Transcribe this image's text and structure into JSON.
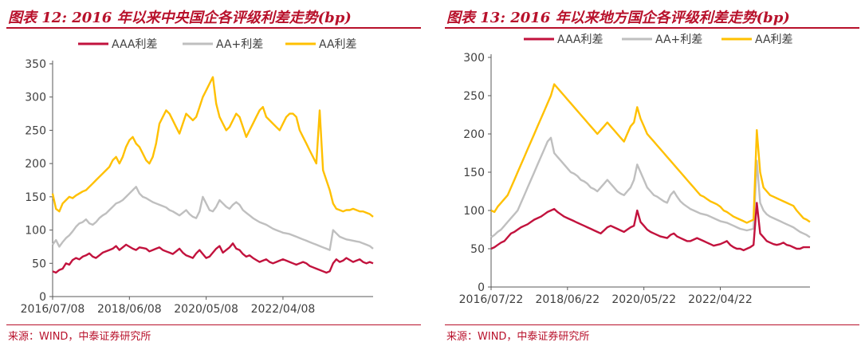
{
  "colors": {
    "title_red": "#b8112b",
    "AAA": "#c2123d",
    "AA+": "#bfbfbf",
    "AA": "#ffc000"
  },
  "charts": [
    {
      "title": "图表 12: 2016 年以来中央国企各评级利差走势(bp)",
      "source": "来源：WIND，中泰证券研究所"
    },
    {
      "title": "图表 13: 2016 年以来地方国企各评级利差走势(bp)",
      "source": "来源：WIND，中泰证券研究所"
    }
  ],
  "chart_data": [
    {
      "type": "line",
      "title": "图表 12: 2016 年以来中央国企各评级利差走势(bp)",
      "xlabel": "",
      "ylabel": "",
      "ylim": [
        0,
        350
      ],
      "yticks": [
        0,
        50,
        100,
        150,
        200,
        250,
        300,
        350
      ],
      "xlim": [
        "2016/07/08",
        "2024/07/05"
      ],
      "xticks": [
        "2016/07/08",
        "2018/06/08",
        "2020/05/08",
        "2022/04/08"
      ],
      "legend": "top-center",
      "grid": false,
      "x": [
        "2016/07/08",
        "2016/08/05",
        "2016/09/02",
        "2016/10/07",
        "2016/11/04",
        "2016/12/02",
        "2017/01/06",
        "2017/02/03",
        "2017/03/03",
        "2017/04/07",
        "2017/05/05",
        "2017/06/02",
        "2017/07/07",
        "2017/08/04",
        "2017/09/01",
        "2017/10/06",
        "2017/11/03",
        "2017/12/01",
        "2018/01/05",
        "2018/02/02",
        "2018/03/02",
        "2018/04/06",
        "2018/05/04",
        "2018/06/08",
        "2018/07/06",
        "2018/08/03",
        "2018/09/07",
        "2018/10/05",
        "2018/11/02",
        "2018/12/07",
        "2019/01/04",
        "2019/02/01",
        "2019/03/08",
        "2019/04/05",
        "2019/05/03",
        "2019/06/07",
        "2019/07/05",
        "2019/08/02",
        "2019/09/06",
        "2019/10/04",
        "2019/11/01",
        "2019/12/06",
        "2020/01/03",
        "2020/02/07",
        "2020/03/06",
        "2020/04/03",
        "2020/05/08",
        "2020/06/05",
        "2020/07/03",
        "2020/08/07",
        "2020/09/04",
        "2020/10/02",
        "2020/11/06",
        "2020/12/04",
        "2021/01/08",
        "2021/02/05",
        "2021/03/05",
        "2021/04/02",
        "2021/05/07",
        "2021/06/04",
        "2021/07/02",
        "2021/08/06",
        "2021/09/03",
        "2021/10/08",
        "2021/11/05",
        "2021/12/03",
        "2022/01/07",
        "2022/02/04",
        "2022/03/04",
        "2022/04/08",
        "2022/05/06",
        "2022/06/03",
        "2022/07/08",
        "2022/08/05",
        "2022/09/02",
        "2022/10/07",
        "2022/11/04",
        "2022/12/02",
        "2023/01/06",
        "2023/02/03",
        "2023/03/03",
        "2023/04/07",
        "2023/05/05",
        "2023/06/02",
        "2023/07/07",
        "2023/08/04",
        "2023/09/01",
        "2023/10/06",
        "2023/11/03",
        "2023/12/01",
        "2024/01/05",
        "2024/02/02",
        "2024/03/01",
        "2024/04/05",
        "2024/05/03",
        "2024/06/07",
        "2024/07/05"
      ],
      "series": [
        {
          "name": "AAA利差",
          "color": "#c2123d",
          "values": [
            38,
            36,
            40,
            42,
            50,
            48,
            55,
            58,
            56,
            60,
            62,
            65,
            60,
            58,
            62,
            66,
            68,
            70,
            72,
            76,
            70,
            74,
            78,
            75,
            72,
            70,
            74,
            73,
            72,
            68,
            70,
            72,
            74,
            70,
            68,
            66,
            64,
            68,
            72,
            66,
            62,
            60,
            58,
            65,
            70,
            64,
            58,
            60,
            66,
            72,
            76,
            66,
            70,
            74,
            80,
            72,
            70,
            64,
            60,
            62,
            58,
            55,
            52,
            54,
            56,
            52,
            50,
            52,
            54,
            56,
            54,
            52,
            50,
            48,
            50,
            52,
            50,
            46,
            44,
            42,
            40,
            38,
            36,
            38,
            50,
            56,
            52,
            54,
            58,
            55,
            52,
            54,
            56,
            52,
            50,
            52,
            50
          ]
        },
        {
          "name": "AA+利差",
          "color": "#bfbfbf",
          "values": [
            78,
            85,
            75,
            82,
            88,
            92,
            98,
            105,
            110,
            112,
            116,
            110,
            108,
            112,
            118,
            122,
            125,
            130,
            135,
            140,
            142,
            145,
            150,
            155,
            160,
            165,
            155,
            150,
            148,
            145,
            142,
            140,
            138,
            136,
            134,
            130,
            128,
            125,
            122,
            126,
            130,
            124,
            120,
            118,
            128,
            150,
            140,
            130,
            128,
            135,
            145,
            140,
            135,
            132,
            138,
            142,
            138,
            130,
            126,
            122,
            118,
            115,
            112,
            110,
            108,
            105,
            102,
            100,
            98,
            96,
            95,
            94,
            92,
            90,
            88,
            86,
            84,
            82,
            80,
            78,
            76,
            74,
            72,
            70,
            100,
            95,
            90,
            88,
            86,
            85,
            84,
            83,
            82,
            80,
            78,
            76,
            72
          ]
        },
        {
          "name": "AA利差",
          "color": "#ffc000",
          "values": [
            155,
            132,
            128,
            140,
            145,
            150,
            148,
            152,
            155,
            158,
            160,
            165,
            170,
            175,
            180,
            185,
            190,
            195,
            205,
            210,
            200,
            210,
            225,
            235,
            240,
            230,
            225,
            215,
            205,
            200,
            210,
            230,
            260,
            270,
            280,
            275,
            265,
            255,
            245,
            260,
            275,
            270,
            265,
            270,
            285,
            300,
            310,
            320,
            330,
            290,
            270,
            260,
            250,
            255,
            265,
            275,
            270,
            255,
            240,
            250,
            260,
            270,
            280,
            285,
            270,
            265,
            260,
            255,
            250,
            260,
            270,
            275,
            275,
            270,
            250,
            240,
            230,
            220,
            210,
            200,
            280,
            190,
            175,
            160,
            140,
            132,
            130,
            128,
            130,
            130,
            132,
            130,
            128,
            128,
            126,
            124,
            120
          ]
        }
      ]
    },
    {
      "type": "line",
      "title": "图表 13: 2016 年以来地方国企各评级利差走势(bp)",
      "xlabel": "",
      "ylabel": "",
      "ylim": [
        0,
        300
      ],
      "yticks": [
        0,
        50,
        100,
        150,
        200,
        250,
        300
      ],
      "xlim": [
        "2016/07/22",
        "2024/07/19"
      ],
      "xticks": [
        "2016/07/22",
        "2018/06/22",
        "2020/05/22",
        "2022/04/22"
      ],
      "legend": "top-center",
      "grid": false,
      "x": [
        "2016/07/22",
        "2016/08/19",
        "2016/09/23",
        "2016/10/21",
        "2016/11/18",
        "2016/12/23",
        "2017/01/20",
        "2017/02/17",
        "2017/03/24",
        "2017/04/21",
        "2017/05/19",
        "2017/06/23",
        "2017/07/21",
        "2017/08/18",
        "2017/09/22",
        "2017/10/20",
        "2017/11/24",
        "2017/12/22",
        "2018/01/19",
        "2018/02/23",
        "2018/03/23",
        "2018/04/20",
        "2018/05/18",
        "2018/06/22",
        "2018/07/20",
        "2018/08/24",
        "2018/09/21",
        "2018/10/19",
        "2018/11/23",
        "2018/12/21",
        "2019/01/18",
        "2019/02/22",
        "2019/03/22",
        "2019/04/19",
        "2019/05/24",
        "2019/06/21",
        "2019/07/19",
        "2019/08/23",
        "2019/09/20",
        "2019/10/18",
        "2019/11/22",
        "2019/12/20",
        "2020/01/17",
        "2020/02/21",
        "2020/03/20",
        "2020/04/24",
        "2020/05/22",
        "2020/06/19",
        "2020/07/24",
        "2020/08/21",
        "2020/09/18",
        "2020/10/23",
        "2020/11/20",
        "2020/12/18",
        "2021/01/22",
        "2021/02/19",
        "2021/03/19",
        "2021/04/23",
        "2021/05/21",
        "2021/06/18",
        "2021/07/23",
        "2021/08/20",
        "2021/09/24",
        "2021/10/22",
        "2021/11/19",
        "2021/12/24",
        "2022/01/21",
        "2022/02/18",
        "2022/03/18",
        "2022/04/22",
        "2022/05/20",
        "2022/06/24",
        "2022/07/22",
        "2022/08/19",
        "2022/09/23",
        "2022/10/21",
        "2022/11/18",
        "2022/12/23",
        "2023/01/20",
        "2023/02/24",
        "2023/03/24",
        "2023/04/21",
        "2023/05/19",
        "2023/06/23",
        "2023/07/21",
        "2023/08/18",
        "2023/09/22",
        "2023/10/20",
        "2023/11/24",
        "2023/12/22",
        "2024/01/19",
        "2024/02/23",
        "2024/03/22",
        "2024/04/19",
        "2024/05/24",
        "2024/06/21",
        "2024/07/19"
      ],
      "series": [
        {
          "name": "AAA利差",
          "color": "#c2123d",
          "values": [
            50,
            52,
            55,
            58,
            60,
            65,
            70,
            72,
            75,
            78,
            80,
            82,
            85,
            88,
            90,
            92,
            95,
            98,
            100,
            102,
            98,
            95,
            92,
            90,
            88,
            86,
            84,
            82,
            80,
            78,
            76,
            74,
            72,
            70,
            74,
            78,
            80,
            78,
            76,
            74,
            72,
            75,
            78,
            80,
            100,
            85,
            80,
            75,
            72,
            70,
            68,
            66,
            65,
            64,
            68,
            70,
            66,
            64,
            62,
            60,
            60,
            62,
            64,
            62,
            60,
            58,
            56,
            54,
            55,
            56,
            58,
            60,
            55,
            52,
            50,
            50,
            48,
            50,
            52,
            55,
            110,
            70,
            65,
            60,
            58,
            56,
            55,
            56,
            58,
            55,
            54,
            52,
            50,
            50,
            52,
            52,
            52
          ]
        },
        {
          "name": "AA+利差",
          "color": "#bfbfbf",
          "values": [
            65,
            68,
            72,
            75,
            80,
            85,
            90,
            95,
            100,
            110,
            120,
            130,
            140,
            150,
            160,
            170,
            180,
            190,
            195,
            175,
            170,
            165,
            160,
            155,
            150,
            148,
            145,
            140,
            138,
            135,
            130,
            128,
            125,
            130,
            135,
            140,
            135,
            130,
            125,
            122,
            120,
            125,
            130,
            140,
            160,
            150,
            140,
            130,
            125,
            120,
            118,
            115,
            112,
            110,
            120,
            125,
            118,
            112,
            108,
            105,
            102,
            100,
            98,
            96,
            95,
            94,
            92,
            90,
            88,
            86,
            85,
            84,
            82,
            80,
            78,
            76,
            75,
            74,
            75,
            76,
            165,
            110,
            100,
            95,
            92,
            90,
            88,
            86,
            84,
            82,
            80,
            78,
            75,
            72,
            70,
            68,
            65
          ]
        },
        {
          "name": "AA利差",
          "color": "#ffc000",
          "values": [
            100,
            98,
            105,
            110,
            115,
            120,
            130,
            140,
            150,
            160,
            170,
            180,
            190,
            200,
            210,
            220,
            230,
            240,
            250,
            265,
            260,
            255,
            250,
            245,
            240,
            235,
            230,
            225,
            220,
            215,
            210,
            205,
            200,
            205,
            210,
            215,
            210,
            205,
            200,
            195,
            190,
            200,
            210,
            215,
            235,
            220,
            210,
            200,
            195,
            190,
            185,
            180,
            175,
            170,
            165,
            160,
            155,
            150,
            145,
            140,
            135,
            130,
            125,
            120,
            118,
            115,
            112,
            110,
            108,
            105,
            100,
            98,
            95,
            92,
            90,
            88,
            86,
            84,
            86,
            88,
            205,
            150,
            130,
            125,
            120,
            118,
            116,
            114,
            112,
            110,
            108,
            106,
            100,
            95,
            90,
            88,
            85
          ]
        }
      ]
    }
  ]
}
